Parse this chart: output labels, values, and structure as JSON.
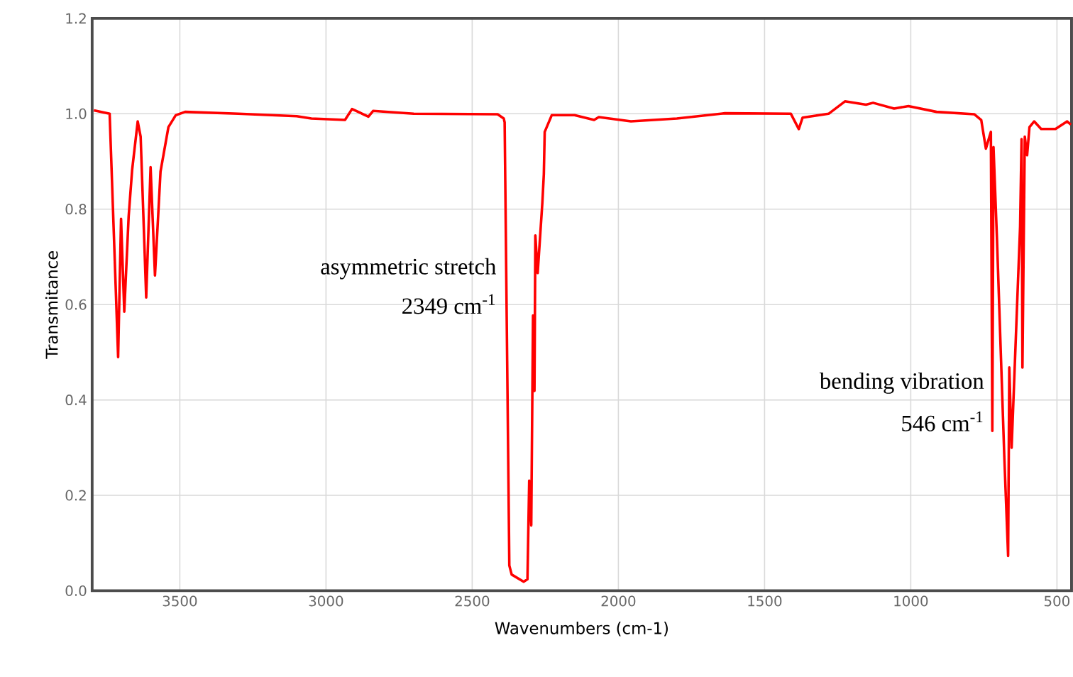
{
  "chart_data": {
    "type": "line",
    "xlabel": "Wavenumbers (cm-1)",
    "ylabel": "Transmitance",
    "annotations": [
      "asymmetric stretch",
      "2349 cm$^{-1}$",
      "bending vibration",
      "546 cm$^{-1}$"
    ],
    "x": [
      3794,
      3740,
      3711,
      3701,
      3690,
      3675,
      3663,
      3644,
      3634,
      3615,
      3600,
      3585,
      3566,
      3539,
      3514,
      3482,
      3300,
      3100,
      3050,
      2935,
      2911,
      2855,
      2839,
      2700,
      2413,
      2392,
      2389,
      2373,
      2365,
      2324,
      2311,
      2305,
      2298,
      2292,
      2287,
      2284,
      2276,
      2260,
      2255,
      2252,
      2228,
      2150,
      2083,
      2067,
      1957,
      1800,
      1636,
      1410,
      1383,
      1370,
      1281,
      1225,
      1153,
      1129,
      1057,
      1008,
      912,
      783,
      759,
      743,
      726,
      721,
      717,
      705,
      680,
      667,
      663,
      655,
      626,
      621,
      618,
      610,
      602,
      594,
      578,
      554,
      505,
      465,
      452
    ],
    "series": [
      {
        "color": "#ff0000",
        "values": [
          1.007,
          1.0,
          0.49,
          0.78,
          0.585,
          0.785,
          0.883,
          0.984,
          0.952,
          0.615,
          0.888,
          0.661,
          0.879,
          0.972,
          0.997,
          1.004,
          1.0,
          0.995,
          0.99,
          0.987,
          1.01,
          0.994,
          1.006,
          1.0,
          0.999,
          0.99,
          0.982,
          0.053,
          0.034,
          0.019,
          0.024,
          0.231,
          0.137,
          0.577,
          0.419,
          0.745,
          0.666,
          0.814,
          0.873,
          0.962,
          0.997,
          0.997,
          0.987,
          0.993,
          0.984,
          0.99,
          1.001,
          1.0,
          0.968,
          0.992,
          1.0,
          1.026,
          1.019,
          1.023,
          1.011,
          1.016,
          1.004,
          0.999,
          0.987,
          0.927,
          0.962,
          0.335,
          0.93,
          0.735,
          0.28,
          0.073,
          0.468,
          0.3,
          0.764,
          0.947,
          0.468,
          0.952,
          0.913,
          0.972,
          0.984,
          0.968,
          0.968,
          0.984,
          0.977
        ]
      }
    ],
    "xlim": [
      3800,
      450
    ],
    "ylim": [
      0,
      1.2
    ],
    "xticks": [
      3500,
      3000,
      2500,
      2000,
      1500,
      1000,
      500
    ],
    "yticks": [
      {
        "value": 0,
        "label": "0.0"
      },
      {
        "value": 0.2,
        "label": "0.2"
      },
      {
        "value": 0.4,
        "label": "0.4"
      },
      {
        "value": 0.6,
        "label": "0.6"
      },
      {
        "value": 0.8,
        "label": "0.8"
      },
      {
        "value": 1,
        "label": "1.0"
      },
      {
        "value": 1.2,
        "label": "1.2"
      }
    ],
    "grid": true
  }
}
